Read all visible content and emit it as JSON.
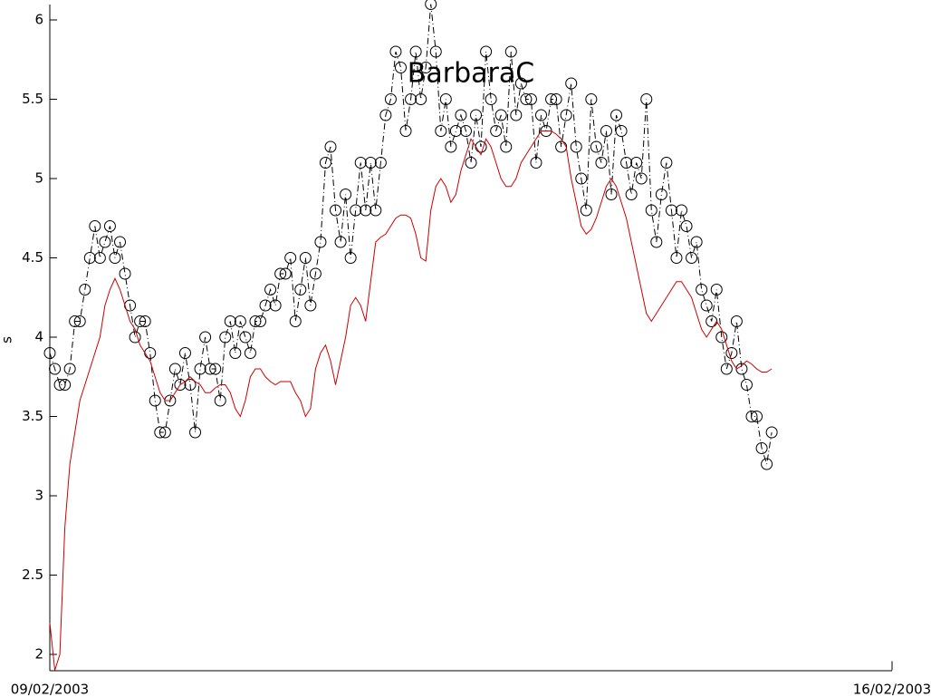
{
  "chart_data": {
    "type": "line",
    "title": "BarbaraC",
    "ylabel": "s",
    "x": [
      0,
      1,
      2,
      3,
      4,
      5,
      6,
      7,
      8,
      9,
      10,
      11,
      12,
      13,
      14,
      15,
      16,
      17,
      18,
      19,
      20,
      21,
      22,
      23,
      24,
      25,
      26,
      27,
      28,
      29,
      30,
      31,
      32,
      33,
      34,
      35,
      36,
      37,
      38,
      39,
      40,
      41,
      42,
      43,
      44,
      45,
      46,
      47,
      48,
      49,
      50,
      51,
      52,
      53,
      54,
      55,
      56,
      57,
      58,
      59,
      60,
      61,
      62,
      63,
      64,
      65,
      66,
      67,
      68,
      69,
      70,
      71,
      72,
      73,
      74,
      75,
      76,
      77,
      78,
      79,
      80,
      81,
      82,
      83,
      84,
      85,
      86,
      87,
      88,
      89,
      90,
      91,
      92,
      93,
      94,
      95,
      96,
      97,
      98,
      99,
      100,
      101,
      102,
      103,
      104,
      105,
      106,
      107,
      108,
      109,
      110,
      111,
      112,
      113,
      114,
      115,
      116,
      117,
      118,
      119,
      120,
      121,
      122,
      123,
      124,
      125,
      126,
      127,
      128,
      129,
      130,
      131,
      132,
      133,
      134,
      135,
      136,
      137,
      138,
      139,
      140,
      141,
      142,
      143,
      144
    ],
    "series": [
      {
        "color": "#000000",
        "marker": "o",
        "dash": "dashdot",
        "values": [
          3.9,
          3.8,
          3.7,
          3.7,
          3.8,
          4.1,
          4.1,
          4.3,
          4.5,
          4.7,
          4.5,
          4.6,
          4.7,
          4.5,
          4.6,
          4.4,
          4.2,
          4.0,
          4.1,
          4.1,
          3.9,
          3.6,
          3.4,
          3.4,
          3.6,
          3.8,
          3.7,
          3.9,
          3.7,
          3.4,
          3.8,
          4.0,
          3.8,
          3.8,
          3.6,
          4.0,
          4.1,
          3.9,
          4.1,
          4.0,
          3.9,
          4.1,
          4.1,
          4.2,
          4.3,
          4.2,
          4.4,
          4.4,
          4.5,
          4.1,
          4.3,
          4.5,
          4.2,
          4.4,
          4.6,
          5.1,
          5.2,
          4.8,
          4.6,
          4.9,
          4.5,
          4.8,
          5.1,
          4.8,
          5.1,
          4.8,
          5.1,
          5.4,
          5.5,
          5.8,
          5.7,
          5.3,
          5.5,
          5.8,
          5.5,
          5.7,
          6.1,
          5.8,
          5.3,
          5.5,
          5.2,
          5.3,
          5.4,
          5.3,
          5.1,
          5.4,
          5.2,
          5.8,
          5.5,
          5.3,
          5.4,
          5.2,
          5.8,
          5.4,
          5.6,
          5.5,
          5.5,
          5.1,
          5.4,
          5.3,
          5.5,
          5.5,
          5.2,
          5.4,
          5.6,
          5.2,
          5.0,
          4.8,
          5.5,
          5.2,
          5.1,
          5.3,
          4.9,
          5.4,
          5.3,
          5.1,
          4.9,
          5.1,
          5.0,
          5.5,
          4.8,
          4.6,
          4.9,
          5.1,
          4.8,
          4.5,
          4.8,
          4.7,
          4.5,
          4.6,
          4.3,
          4.2,
          4.1,
          4.3,
          4.0,
          3.8,
          3.9,
          4.1,
          3.8,
          3.7,
          3.5,
          3.5,
          3.3,
          3.2,
          3.4
        ]
      },
      {
        "color": "#cc0000",
        "values": [
          2.2,
          1.9,
          2.0,
          2.8,
          3.2,
          3.4,
          3.6,
          3.7,
          3.8,
          3.9,
          4.0,
          4.2,
          4.3,
          4.37,
          4.3,
          4.2,
          4.1,
          4.05,
          3.95,
          3.9,
          3.85,
          3.75,
          3.65,
          3.6,
          3.6,
          3.65,
          3.7,
          3.72,
          3.75,
          3.72,
          3.7,
          3.65,
          3.65,
          3.68,
          3.7,
          3.7,
          3.65,
          3.55,
          3.5,
          3.6,
          3.75,
          3.8,
          3.8,
          3.75,
          3.72,
          3.7,
          3.72,
          3.72,
          3.72,
          3.65,
          3.6,
          3.5,
          3.55,
          3.8,
          3.9,
          3.95,
          3.85,
          3.7,
          3.85,
          4.0,
          4.2,
          4.25,
          4.2,
          4.1,
          4.35,
          4.6,
          4.63,
          4.65,
          4.7,
          4.75,
          4.77,
          4.77,
          4.75,
          4.65,
          4.5,
          4.48,
          4.8,
          4.95,
          5.0,
          4.95,
          4.85,
          4.9,
          5.05,
          5.15,
          5.25,
          5.2,
          5.15,
          5.25,
          5.2,
          5.1,
          5.0,
          4.95,
          4.95,
          5.0,
          5.1,
          5.15,
          5.2,
          5.25,
          5.3,
          5.3,
          5.3,
          5.28,
          5.25,
          5.2,
          5.0,
          4.85,
          4.7,
          4.65,
          4.68,
          4.75,
          4.85,
          4.95,
          5.0,
          4.95,
          4.85,
          4.75,
          4.6,
          4.45,
          4.3,
          4.15,
          4.1,
          4.15,
          4.2,
          4.25,
          4.3,
          4.35,
          4.35,
          4.3,
          4.25,
          4.15,
          4.05,
          4.0,
          4.05,
          4.1,
          4.05,
          3.95,
          3.85,
          3.8,
          3.82,
          3.85,
          3.83,
          3.8,
          3.78,
          3.78,
          3.8
        ]
      }
    ],
    "xlim": [
      0,
      168
    ],
    "xticks": [
      {
        "value": 0,
        "label": "09/02/2003"
      },
      {
        "value": 168,
        "label": "16/02/2003"
      }
    ],
    "ylim": [
      1.9,
      6.1
    ],
    "yticks": [
      2,
      2.5,
      3,
      3.5,
      4,
      4.5,
      5,
      5.5,
      6
    ],
    "grid": false
  }
}
